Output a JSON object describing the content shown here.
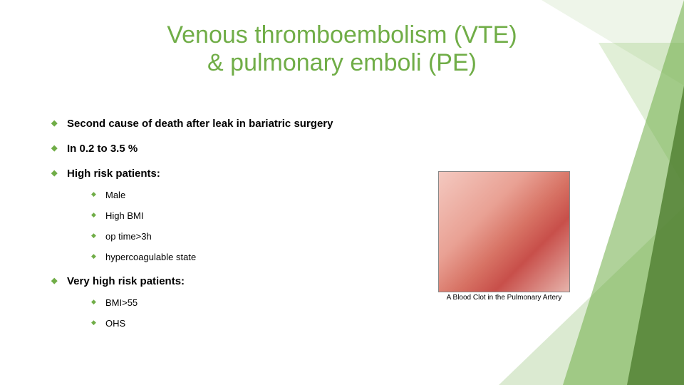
{
  "title": {
    "line1": "Venous thromboembolism (VTE)",
    "line2": "& pulmonary emboli (PE)",
    "color": "#70ad47",
    "fontsize": 34
  },
  "bullets": [
    {
      "text": "Second cause of death after leak in bariatric surgery"
    },
    {
      "text": "In 0.2 to 3.5 %"
    },
    {
      "text": "High risk patients:",
      "children": [
        {
          "text": "Male"
        },
        {
          "text": "High BMI"
        },
        {
          "text": "op time>3h"
        },
        {
          "text": "hypercoagulable state"
        }
      ]
    },
    {
      "text": "Very high risk patients:",
      "children": [
        {
          "text": "BMI>55"
        },
        {
          "text": "OHS"
        }
      ]
    }
  ],
  "figure": {
    "caption": "A Blood Clot in the Pulmonary Artery"
  },
  "theme": {
    "accent": "#70ad47",
    "accent_dark": "#548235",
    "accent_light": "#a8d08d",
    "background": "#ffffff",
    "bullet_glyph": "◆"
  }
}
